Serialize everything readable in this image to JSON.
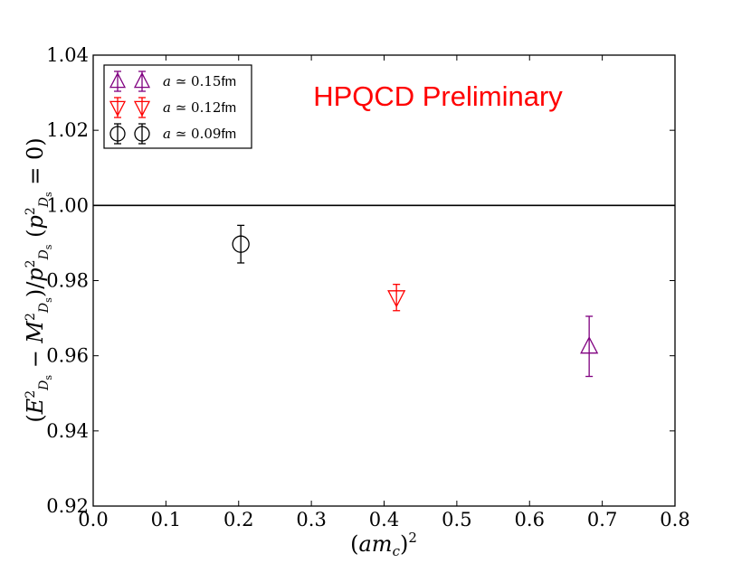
{
  "chart_data": {
    "type": "scatter",
    "title": "",
    "xlabel": "(am_c)^2",
    "ylabel": "(E^2_Ds - M^2_Ds)/p^2_Ds (p^2_Ds = 0)",
    "xlim": [
      0.0,
      0.8
    ],
    "ylim": [
      0.92,
      1.04
    ],
    "x_ticks": [
      "0.0",
      "0.1",
      "0.2",
      "0.3",
      "0.4",
      "0.5",
      "0.6",
      "0.7",
      "0.8"
    ],
    "y_ticks": [
      "0.92",
      "0.94",
      "0.96",
      "0.98",
      "1.00",
      "1.02",
      "1.04"
    ],
    "reference_line": 1.0,
    "grid": false,
    "legend_position": "top-left",
    "annotation": {
      "text": "HPQCD Preliminary",
      "color": "#ff0000"
    },
    "series": [
      {
        "name": "a ≃ 0.15fm",
        "label_prefix": "a ≃ 0.15",
        "label_unit": "fm",
        "marker": "triangle-up",
        "color": "#800080",
        "points": [
          {
            "x": 0.682,
            "y": 0.9625,
            "yerr": 0.008
          }
        ]
      },
      {
        "name": "a ≃ 0.12fm",
        "label_prefix": "a ≃ 0.12",
        "label_unit": "fm",
        "marker": "triangle-down",
        "color": "#ff0000",
        "points": [
          {
            "x": 0.417,
            "y": 0.9755,
            "yerr": 0.0035
          }
        ]
      },
      {
        "name": "a ≃ 0.09fm",
        "label_prefix": "a ≃ 0.09",
        "label_unit": "fm",
        "marker": "circle",
        "color": "#000000",
        "points": [
          {
            "x": 0.203,
            "y": 0.9897,
            "yerr": 0.005
          }
        ]
      }
    ]
  }
}
